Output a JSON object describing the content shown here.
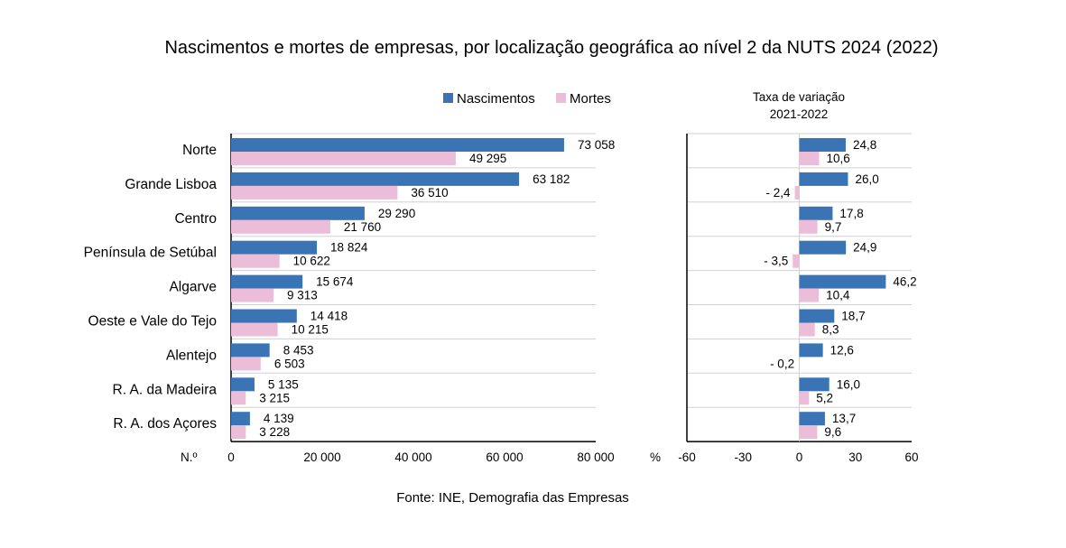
{
  "title": "Nascimentos e mortes de empresas, por localização geográfica ao nível 2 da NUTS 2024 (2022)",
  "source_label": "Fonte:",
  "source_text": " INE, Demografia das Empresas",
  "colors": {
    "nascimentos": "#3b74b5",
    "mortes": "#ebbdd8"
  },
  "chart_data": [
    {
      "type": "bar",
      "orientation": "horizontal",
      "categories": [
        "Norte",
        "Grande Lisboa",
        "Centro",
        "Península de Setúbal",
        "Algarve",
        "Oeste e Vale do Tejo",
        "Alentejo",
        "R. A. da Madeira",
        "R. A. dos Açores"
      ],
      "series": [
        {
          "name": "Nascimentos",
          "values": [
            73058,
            63182,
            29290,
            18824,
            15674,
            14418,
            8453,
            5135,
            4139
          ],
          "labels": [
            "73 058",
            "63 182",
            "29 290",
            "18 824",
            "15 674",
            "14 418",
            "8 453",
            "5 135",
            "4 139"
          ]
        },
        {
          "name": "Mortes",
          "values": [
            49295,
            36510,
            21760,
            10622,
            9313,
            10215,
            6503,
            3215,
            3228
          ],
          "labels": [
            "49 295",
            "36 510",
            "21 760",
            "10 622",
            "9 313",
            "10 215",
            "6 503",
            "3 215",
            "3 228"
          ]
        }
      ],
      "xlabel": "N.º",
      "xlim": [
        0,
        80000
      ],
      "ticks": [
        0,
        20000,
        40000,
        60000,
        80000
      ],
      "tick_labels": [
        "0",
        "20 000",
        "40 000",
        "60 000",
        "80 000"
      ],
      "legend": "top"
    },
    {
      "type": "bar",
      "orientation": "horizontal",
      "title": "Taxa de variação 2021-2022",
      "title_lines": [
        "Taxa de variação",
        "2021-2022"
      ],
      "categories": [
        "Norte",
        "Grande Lisboa",
        "Centro",
        "Península de Setúbal",
        "Algarve",
        "Oeste e Vale do Tejo",
        "Alentejo",
        "R. A. da Madeira",
        "R. A. dos Açores"
      ],
      "series": [
        {
          "name": "Nascimentos",
          "values": [
            24.8,
            26.0,
            17.8,
            24.9,
            46.2,
            18.7,
            12.6,
            16.0,
            13.7
          ],
          "labels": [
            "24,8",
            "26,0",
            "17,8",
            "24,9",
            "46,2",
            "18,7",
            "12,6",
            "16,0",
            "13,7"
          ]
        },
        {
          "name": "Mortes",
          "values": [
            10.6,
            -2.4,
            9.7,
            -3.5,
            10.4,
            8.3,
            -0.2,
            5.2,
            9.6
          ],
          "labels": [
            "10,6",
            "- 2,4",
            "9,7",
            "- 3,5",
            "10,4",
            "8,3",
            "- 0,2",
            "5,2",
            "9,6"
          ]
        }
      ],
      "xlabel": "%",
      "xlim": [
        -60,
        60
      ],
      "ticks": [
        -60,
        -30,
        0,
        30,
        60
      ],
      "tick_labels": [
        "-60",
        "-30",
        "0",
        "30",
        "60"
      ]
    }
  ]
}
